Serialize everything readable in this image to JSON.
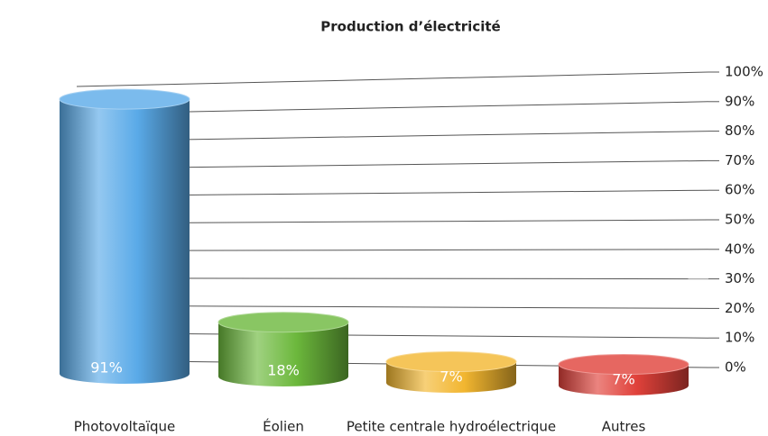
{
  "chart_data": {
    "type": "bar",
    "title": "Production d’électricité",
    "categories": [
      "Photovoltaïque",
      "Éolien",
      "Petite centrale hydroélectrique",
      "Autres"
    ],
    "values": [
      91,
      18,
      7,
      7
    ],
    "value_labels": [
      "91%",
      "18%",
      "7%",
      "7%"
    ],
    "colors": [
      "#5aaae8",
      "#6cb83c",
      "#f2b630",
      "#e0413a"
    ],
    "ylim": [
      0,
      100
    ],
    "yticks": [
      {
        "value": 0,
        "label": "0%"
      },
      {
        "value": 10,
        "label": "10%"
      },
      {
        "value": 20,
        "label": "20%"
      },
      {
        "value": 30,
        "label": "30%"
      },
      {
        "value": 40,
        "label": "40%"
      },
      {
        "value": 50,
        "label": "50%"
      },
      {
        "value": 60,
        "label": "60%"
      },
      {
        "value": 70,
        "label": "70%"
      },
      {
        "value": 80,
        "label": "80%"
      },
      {
        "value": 90,
        "label": "90%"
      },
      {
        "value": 100,
        "label": "100%"
      }
    ],
    "grid": true
  }
}
